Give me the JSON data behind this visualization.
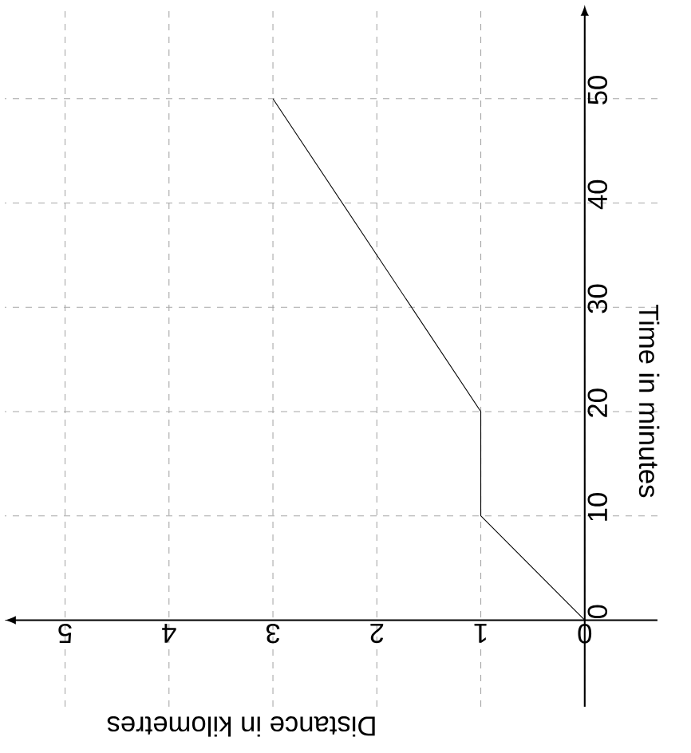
{
  "chart_data": {
    "type": "line",
    "xlabel": "Distance in kilometres",
    "ylabel": "Time in minutes",
    "x": [
      0,
      1,
      1,
      3
    ],
    "values": [
      0,
      10,
      20,
      50
    ],
    "color": "#000000",
    "xlim": [
      5.58,
      -0.7
    ],
    "ylim": [
      -8.3,
      59
    ],
    "xticks": [
      0,
      1,
      2,
      3,
      4,
      5
    ],
    "yticks": [
      0,
      10,
      20,
      30,
      40,
      50
    ],
    "grid": true
  }
}
